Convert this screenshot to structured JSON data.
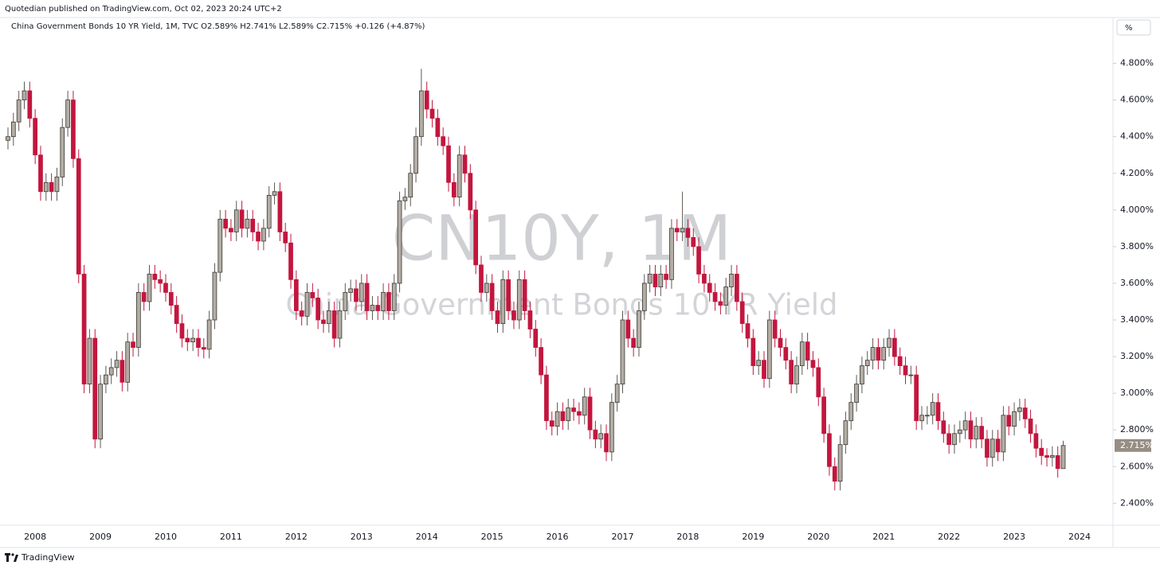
{
  "chart_data": {
    "type": "candlestick",
    "publisher_line": "Quotedian published on TradingView.com, Oct 02, 2023 20:24 UTC+2",
    "symbol_line": "China Government Bonds 10 YR Yield, 1M, TVC  O2.589%  H2.741%  L2.589%  C2.715%  +0.126 (+4.87%)",
    "watermark_symbol": "CN10Y, 1M",
    "watermark_name": "China Government Bonds 10 YR Yield",
    "scale_button": "%",
    "brand": "TradingView",
    "last_price_label": "2.715%",
    "up_color": "#b3ada4",
    "down_color": "#c2163e",
    "ylim": [
      2.28,
      4.95
    ],
    "yticks": [
      {
        "value": 2.4,
        "label": "2.400%"
      },
      {
        "value": 2.6,
        "label": "2.600%"
      },
      {
        "value": 2.8,
        "label": "2.800%"
      },
      {
        "value": 3.0,
        "label": "3.000%"
      },
      {
        "value": 3.2,
        "label": "3.200%"
      },
      {
        "value": 3.4,
        "label": "3.400%"
      },
      {
        "value": 3.6,
        "label": "3.600%"
      },
      {
        "value": 3.8,
        "label": "3.800%"
      },
      {
        "value": 4.0,
        "label": "4.000%"
      },
      {
        "value": 4.2,
        "label": "4.200%"
      },
      {
        "value": 4.4,
        "label": "4.400%"
      },
      {
        "value": 4.6,
        "label": "4.600%"
      },
      {
        "value": 4.8,
        "label": "4.800%"
      }
    ],
    "categories": [
      null,
      null,
      null,
      null,
      null,
      "2008",
      null,
      null,
      null,
      null,
      null,
      null,
      null,
      null,
      null,
      null,
      null,
      "2009",
      null,
      null,
      null,
      null,
      null,
      null,
      null,
      null,
      null,
      null,
      null,
      "2010",
      null,
      null,
      null,
      null,
      null,
      null,
      null,
      null,
      null,
      null,
      null,
      "2011",
      null,
      null,
      null,
      null,
      null,
      null,
      null,
      null,
      null,
      null,
      null,
      "2012",
      null,
      null,
      null,
      null,
      null,
      null,
      null,
      null,
      null,
      null,
      null,
      "2013",
      null,
      null,
      null,
      null,
      null,
      null,
      null,
      null,
      null,
      null,
      null,
      "2014",
      null,
      null,
      null,
      null,
      null,
      null,
      null,
      null,
      null,
      null,
      null,
      "2015",
      null,
      null,
      null,
      null,
      null,
      null,
      null,
      null,
      null,
      null,
      null,
      "2016",
      null,
      null,
      null,
      null,
      null,
      null,
      null,
      null,
      null,
      null,
      null,
      "2017",
      null,
      null,
      null,
      null,
      null,
      null,
      null,
      null,
      null,
      null,
      null,
      "2018",
      null,
      null,
      null,
      null,
      null,
      null,
      null,
      null,
      null,
      null,
      null,
      "2019",
      null,
      null,
      null,
      null,
      null,
      null,
      null,
      null,
      null,
      null,
      null,
      "2020",
      null,
      null,
      null,
      null,
      null,
      null,
      null,
      null,
      null,
      null,
      null,
      "2021",
      null,
      null,
      null,
      null,
      null,
      null,
      null,
      null,
      null,
      null,
      null,
      "2022",
      null,
      null,
      null,
      null,
      null,
      null,
      null,
      null,
      null,
      null,
      null,
      "2023",
      null,
      null,
      null,
      null,
      null,
      null,
      null,
      null,
      null,
      null,
      null,
      "2024"
    ],
    "open": [
      4.38,
      4.4,
      4.48,
      4.6,
      4.65,
      4.5,
      4.3,
      4.1,
      4.15,
      4.1,
      4.18,
      4.45,
      4.6,
      4.28,
      3.65,
      3.05,
      3.3,
      2.75,
      3.05,
      3.1,
      3.14,
      3.18,
      3.06,
      3.28,
      3.25,
      3.55,
      3.5,
      3.65,
      3.62,
      3.6,
      3.55,
      3.48,
      3.38,
      3.3,
      3.28,
      3.3,
      3.25,
      3.24,
      3.4,
      3.66,
      3.95,
      3.9,
      3.88,
      4.0,
      3.9,
      3.95,
      3.88,
      3.83,
      3.9,
      4.08,
      4.1,
      3.88,
      3.82,
      3.62,
      3.45,
      3.42,
      3.55,
      3.52,
      3.4,
      3.38,
      3.45,
      3.3,
      3.45,
      3.55,
      3.57,
      3.5,
      3.6,
      3.45,
      3.48,
      3.45,
      3.55,
      3.45,
      3.6,
      4.05,
      4.07,
      4.2,
      4.4,
      4.65,
      4.55,
      4.5,
      4.4,
      4.35,
      4.15,
      4.07,
      4.3,
      4.2,
      4.0,
      3.7,
      3.55,
      3.6,
      3.45,
      3.38,
      3.62,
      3.45,
      3.4,
      3.62,
      3.45,
      3.35,
      3.25,
      3.1,
      2.85,
      2.82,
      2.9,
      2.85,
      2.92,
      2.9,
      2.88,
      2.98,
      2.8,
      2.75,
      2.78,
      2.68,
      2.95,
      3.05,
      3.4,
      3.3,
      3.25,
      3.45,
      3.6,
      3.65,
      3.58,
      3.65,
      3.62,
      3.9,
      3.88,
      3.9,
      3.85,
      3.8,
      3.65,
      3.6,
      3.55,
      3.5,
      3.48,
      3.58,
      3.65,
      3.5,
      3.38,
      3.3,
      3.15,
      3.18,
      3.08,
      3.4,
      3.3,
      3.25,
      3.18,
      3.05,
      3.15,
      3.28,
      3.18,
      3.14,
      2.98,
      2.78,
      2.6,
      2.52,
      2.72,
      2.85,
      2.95,
      3.05,
      3.15,
      3.18,
      3.25,
      3.18,
      3.25,
      3.3,
      3.2,
      3.15,
      3.1,
      3.1,
      2.85,
      2.88,
      2.88,
      2.95,
      2.85,
      2.78,
      2.72,
      2.78,
      2.8,
      2.85,
      2.75,
      2.82,
      2.75,
      2.65,
      2.75,
      2.68,
      2.88,
      2.82,
      2.9,
      2.92,
      2.86,
      2.78,
      2.7,
      2.66,
      2.65,
      2.66,
      2.589,
      null,
      null,
      null
    ],
    "high": [
      4.45,
      4.53,
      4.65,
      4.7,
      4.7,
      4.55,
      4.35,
      4.2,
      4.2,
      4.23,
      4.5,
      4.65,
      4.65,
      4.33,
      3.7,
      3.35,
      3.35,
      3.1,
      3.15,
      3.19,
      3.23,
      3.23,
      3.33,
      3.33,
      3.6,
      3.6,
      3.7,
      3.7,
      3.67,
      3.65,
      3.6,
      3.53,
      3.43,
      3.35,
      3.35,
      3.35,
      3.3,
      3.45,
      3.71,
      4.0,
      4.0,
      3.95,
      4.05,
      4.05,
      4.0,
      4.0,
      3.93,
      3.95,
      4.13,
      4.15,
      4.15,
      3.93,
      3.87,
      3.67,
      3.5,
      3.6,
      3.6,
      3.57,
      3.45,
      3.5,
      3.5,
      3.5,
      3.6,
      3.62,
      3.62,
      3.65,
      3.65,
      3.53,
      3.53,
      3.6,
      3.6,
      3.65,
      4.1,
      4.12,
      4.25,
      4.45,
      4.77,
      4.7,
      4.6,
      4.55,
      4.45,
      4.4,
      4.2,
      4.35,
      4.35,
      4.25,
      4.05,
      3.75,
      3.65,
      3.65,
      3.5,
      3.67,
      3.67,
      3.5,
      3.67,
      3.67,
      3.5,
      3.4,
      3.3,
      3.15,
      2.9,
      2.95,
      2.95,
      2.97,
      2.97,
      2.95,
      3.03,
      3.03,
      2.85,
      2.83,
      2.83,
      3.0,
      3.1,
      3.45,
      3.45,
      3.35,
      3.5,
      3.65,
      3.7,
      3.7,
      3.7,
      3.7,
      3.95,
      3.95,
      4.1,
      3.95,
      3.9,
      3.85,
      3.7,
      3.65,
      3.6,
      3.55,
      3.63,
      3.7,
      3.7,
      3.55,
      3.43,
      3.35,
      3.23,
      3.23,
      3.45,
      3.45,
      3.35,
      3.3,
      3.23,
      3.2,
      3.33,
      3.33,
      3.23,
      3.19,
      3.03,
      2.83,
      2.65,
      2.77,
      2.9,
      3.0,
      3.1,
      3.2,
      3.23,
      3.3,
      3.3,
      3.3,
      3.35,
      3.35,
      3.25,
      3.2,
      3.15,
      3.15,
      2.93,
      2.93,
      3.0,
      3.0,
      2.9,
      2.83,
      2.83,
      2.85,
      2.9,
      2.9,
      2.87,
      2.87,
      2.8,
      2.8,
      2.8,
      2.93,
      2.93,
      2.95,
      2.97,
      2.97,
      2.91,
      2.83,
      2.75,
      2.7,
      2.71,
      2.71,
      2.741,
      null,
      null,
      null
    ],
    "low": [
      4.33,
      4.35,
      4.43,
      4.55,
      4.45,
      4.25,
      4.05,
      4.05,
      4.05,
      4.05,
      4.13,
      4.4,
      4.23,
      3.6,
      3.0,
      3.0,
      2.7,
      2.7,
      3.0,
      3.05,
      3.09,
      3.01,
      3.01,
      3.2,
      3.2,
      3.45,
      3.45,
      3.57,
      3.55,
      3.5,
      3.43,
      3.33,
      3.25,
      3.23,
      3.23,
      3.2,
      3.19,
      3.19,
      3.35,
      3.61,
      3.85,
      3.83,
      3.83,
      3.85,
      3.85,
      3.83,
      3.78,
      3.78,
      3.85,
      4.03,
      3.83,
      3.77,
      3.57,
      3.4,
      3.37,
      3.37,
      3.47,
      3.35,
      3.33,
      3.33,
      3.25,
      3.25,
      3.4,
      3.5,
      3.45,
      3.45,
      3.4,
      3.4,
      3.4,
      3.4,
      3.4,
      3.4,
      3.55,
      4.0,
      4.02,
      4.15,
      4.35,
      4.5,
      4.45,
      4.35,
      4.3,
      4.1,
      4.02,
      4.02,
      4.15,
      3.95,
      3.65,
      3.5,
      3.5,
      3.4,
      3.33,
      3.33,
      3.4,
      3.35,
      3.35,
      3.4,
      3.3,
      3.2,
      3.05,
      2.8,
      2.77,
      2.77,
      2.8,
      2.8,
      2.85,
      2.83,
      2.83,
      2.75,
      2.7,
      2.7,
      2.63,
      2.63,
      2.9,
      3.0,
      3.25,
      3.2,
      3.2,
      3.4,
      3.55,
      3.53,
      3.53,
      3.57,
      3.57,
      3.83,
      3.83,
      3.8,
      3.75,
      3.6,
      3.55,
      3.5,
      3.45,
      3.43,
      3.43,
      3.53,
      3.45,
      3.33,
      3.25,
      3.1,
      3.1,
      3.03,
      3.03,
      3.25,
      3.2,
      3.13,
      3.0,
      3.0,
      3.1,
      3.13,
      3.09,
      2.93,
      2.73,
      2.55,
      2.47,
      2.47,
      2.67,
      2.8,
      2.9,
      3.0,
      3.1,
      3.13,
      3.13,
      3.13,
      3.2,
      3.15,
      3.1,
      3.05,
      3.05,
      2.8,
      2.8,
      2.83,
      2.83,
      2.8,
      2.73,
      2.67,
      2.67,
      2.73,
      2.75,
      2.7,
      2.7,
      2.7,
      2.6,
      2.6,
      2.63,
      2.63,
      2.77,
      2.77,
      2.85,
      2.81,
      2.73,
      2.65,
      2.61,
      2.6,
      2.6,
      2.54,
      2.589,
      null,
      null,
      null
    ],
    "close": [
      4.4,
      4.48,
      4.6,
      4.65,
      4.5,
      4.3,
      4.1,
      4.15,
      4.1,
      4.18,
      4.45,
      4.6,
      4.28,
      3.65,
      3.05,
      3.3,
      2.75,
      3.05,
      3.1,
      3.14,
      3.18,
      3.06,
      3.28,
      3.25,
      3.55,
      3.5,
      3.65,
      3.62,
      3.6,
      3.55,
      3.48,
      3.38,
      3.3,
      3.28,
      3.3,
      3.25,
      3.24,
      3.4,
      3.66,
      3.95,
      3.9,
      3.88,
      4.0,
      3.9,
      3.95,
      3.88,
      3.83,
      3.9,
      4.08,
      4.1,
      3.88,
      3.82,
      3.62,
      3.45,
      3.42,
      3.55,
      3.52,
      3.4,
      3.38,
      3.45,
      3.3,
      3.45,
      3.55,
      3.57,
      3.5,
      3.6,
      3.45,
      3.48,
      3.45,
      3.55,
      3.45,
      3.6,
      4.05,
      4.07,
      4.2,
      4.4,
      4.65,
      4.55,
      4.5,
      4.4,
      4.35,
      4.15,
      4.07,
      4.3,
      4.2,
      4.0,
      3.7,
      3.55,
      3.6,
      3.45,
      3.38,
      3.62,
      3.45,
      3.4,
      3.62,
      3.45,
      3.35,
      3.25,
      3.1,
      2.85,
      2.82,
      2.9,
      2.85,
      2.92,
      2.9,
      2.88,
      2.98,
      2.8,
      2.75,
      2.78,
      2.68,
      2.95,
      3.05,
      3.4,
      3.3,
      3.25,
      3.45,
      3.6,
      3.65,
      3.58,
      3.65,
      3.62,
      3.9,
      3.88,
      3.9,
      3.85,
      3.8,
      3.65,
      3.6,
      3.55,
      3.5,
      3.48,
      3.58,
      3.65,
      3.5,
      3.38,
      3.3,
      3.15,
      3.18,
      3.08,
      3.4,
      3.3,
      3.25,
      3.18,
      3.05,
      3.15,
      3.28,
      3.18,
      3.14,
      2.98,
      2.78,
      2.6,
      2.52,
      2.72,
      2.85,
      2.95,
      3.05,
      3.15,
      3.18,
      3.25,
      3.18,
      3.25,
      3.3,
      3.2,
      3.15,
      3.1,
      3.1,
      2.85,
      2.88,
      2.88,
      2.95,
      2.85,
      2.78,
      2.72,
      2.78,
      2.8,
      2.85,
      2.75,
      2.82,
      2.75,
      2.65,
      2.75,
      2.68,
      2.88,
      2.82,
      2.9,
      2.92,
      2.86,
      2.78,
      2.7,
      2.66,
      2.65,
      2.66,
      2.589,
      2.715,
      null,
      null,
      null
    ]
  }
}
